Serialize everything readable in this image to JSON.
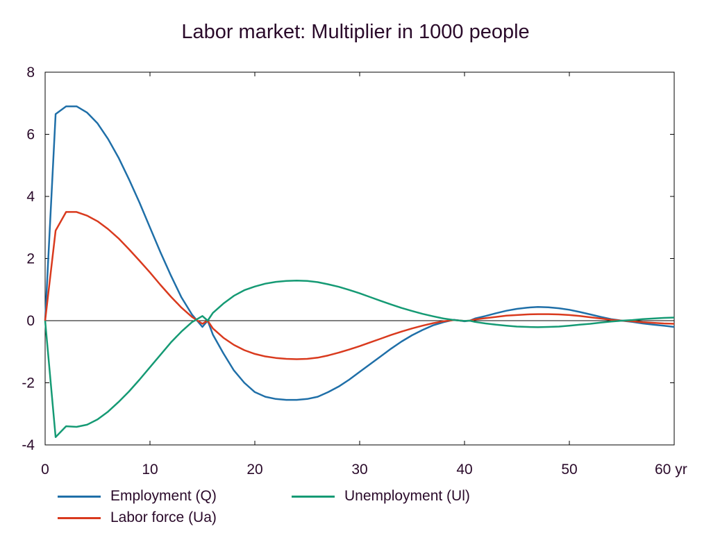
{
  "chart_data": {
    "type": "line",
    "title": "Labor market: Multiplier in 1000 people",
    "xlabel": "",
    "ylabel": "",
    "x_unit_label": "yr",
    "xlim": [
      0,
      60
    ],
    "ylim": [
      -4,
      8
    ],
    "x_ticks": [
      0,
      10,
      20,
      30,
      40,
      50,
      60
    ],
    "x_tick_labels": [
      "0",
      "10",
      "20",
      "30",
      "40",
      "50",
      "60 yr"
    ],
    "y_ticks": [
      -4,
      -2,
      0,
      2,
      4,
      6,
      8
    ],
    "y_tick_labels": [
      "-4",
      "-2",
      "0",
      "2",
      "4",
      "6",
      "8"
    ],
    "grid": false,
    "zero_line": true,
    "legend_position": "bottom",
    "series": [
      {
        "name": "Employment (Q)",
        "color": "#1f6fa8",
        "x": [
          0,
          1,
          2,
          3,
          4,
          5,
          6,
          7,
          8,
          9,
          10,
          11,
          12,
          13,
          14,
          15,
          15.5,
          16,
          17,
          18,
          19,
          20,
          21,
          22,
          23,
          24,
          25,
          26,
          27,
          28,
          29,
          30,
          31,
          32,
          33,
          34,
          35,
          36,
          37,
          38,
          39,
          40,
          40.5,
          41,
          42,
          43,
          44,
          45,
          46,
          47,
          48,
          49,
          50,
          51,
          52,
          53,
          54,
          55,
          56,
          57,
          58,
          59,
          60
        ],
        "y": [
          0,
          6.65,
          6.9,
          6.9,
          6.7,
          6.35,
          5.85,
          5.25,
          4.55,
          3.8,
          3.0,
          2.2,
          1.45,
          0.75,
          0.2,
          -0.2,
          0,
          -0.45,
          -1.05,
          -1.6,
          -2.0,
          -2.3,
          -2.45,
          -2.52,
          -2.55,
          -2.55,
          -2.52,
          -2.45,
          -2.3,
          -2.12,
          -1.9,
          -1.65,
          -1.4,
          -1.15,
          -0.9,
          -0.67,
          -0.47,
          -0.3,
          -0.15,
          -0.05,
          0.03,
          -0.02,
          0,
          0.07,
          0.15,
          0.24,
          0.32,
          0.38,
          0.42,
          0.44,
          0.43,
          0.4,
          0.35,
          0.28,
          0.2,
          0.12,
          0.05,
          0.0,
          -0.04,
          -0.09,
          -0.13,
          -0.16,
          -0.2
        ]
      },
      {
        "name": "Labor force (Ua)",
        "color": "#d93a1e",
        "x": [
          0,
          1,
          2,
          3,
          4,
          5,
          6,
          7,
          8,
          9,
          10,
          11,
          12,
          13,
          14,
          15,
          15.5,
          16,
          17,
          18,
          19,
          20,
          21,
          22,
          23,
          24,
          25,
          26,
          27,
          28,
          29,
          30,
          31,
          32,
          33,
          34,
          35,
          36,
          37,
          38,
          39,
          40,
          40.5,
          41,
          42,
          43,
          44,
          45,
          46,
          47,
          48,
          49,
          50,
          51,
          52,
          53,
          54,
          55,
          56,
          57,
          58,
          59,
          60
        ],
        "y": [
          0,
          2.9,
          3.5,
          3.5,
          3.38,
          3.2,
          2.95,
          2.65,
          2.3,
          1.93,
          1.55,
          1.15,
          0.77,
          0.42,
          0.12,
          -0.1,
          0,
          -0.25,
          -0.55,
          -0.78,
          -0.95,
          -1.07,
          -1.15,
          -1.2,
          -1.23,
          -1.24,
          -1.23,
          -1.19,
          -1.12,
          -1.03,
          -0.93,
          -0.82,
          -0.7,
          -0.58,
          -0.46,
          -0.35,
          -0.25,
          -0.16,
          -0.08,
          -0.02,
          0.02,
          -0.01,
          0,
          0.04,
          0.08,
          0.12,
          0.16,
          0.18,
          0.2,
          0.21,
          0.21,
          0.2,
          0.18,
          0.15,
          0.11,
          0.07,
          0.03,
          0.0,
          -0.02,
          -0.05,
          -0.07,
          -0.09,
          -0.1
        ]
      },
      {
        "name": "Unemployment (Ul)",
        "color": "#159a74",
        "x": [
          0,
          1,
          2,
          3,
          4,
          5,
          6,
          7,
          8,
          9,
          10,
          11,
          12,
          13,
          14,
          15,
          15.5,
          16,
          17,
          18,
          19,
          20,
          21,
          22,
          23,
          24,
          25,
          26,
          27,
          28,
          29,
          30,
          31,
          32,
          33,
          34,
          35,
          36,
          37,
          38,
          39,
          40,
          40.5,
          41,
          42,
          43,
          44,
          45,
          46,
          47,
          48,
          49,
          50,
          51,
          52,
          53,
          54,
          55,
          56,
          57,
          58,
          59,
          60
        ],
        "y": [
          0,
          -3.75,
          -3.4,
          -3.42,
          -3.35,
          -3.18,
          -2.93,
          -2.62,
          -2.28,
          -1.9,
          -1.5,
          -1.1,
          -0.7,
          -0.35,
          -0.05,
          0.15,
          0,
          0.25,
          0.55,
          0.8,
          0.98,
          1.1,
          1.19,
          1.25,
          1.28,
          1.29,
          1.28,
          1.24,
          1.17,
          1.09,
          0.99,
          0.88,
          0.76,
          0.64,
          0.52,
          0.41,
          0.31,
          0.22,
          0.14,
          0.07,
          0.02,
          -0.01,
          0,
          -0.04,
          -0.09,
          -0.13,
          -0.16,
          -0.19,
          -0.2,
          -0.21,
          -0.2,
          -0.19,
          -0.16,
          -0.13,
          -0.1,
          -0.06,
          -0.03,
          0.0,
          0.02,
          0.05,
          0.07,
          0.09,
          0.1
        ]
      }
    ]
  }
}
